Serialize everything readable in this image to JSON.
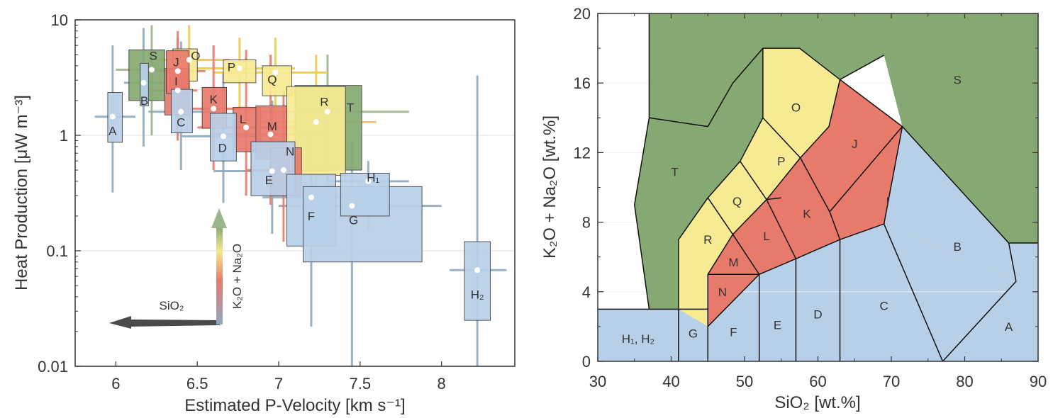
{
  "colors": {
    "mafic_blue": "#b8cfe8",
    "intermediate_red": "#e87a6c",
    "felsic_yellow": "#f6ea92",
    "alkaline_green": "#86a872",
    "errorbar_blue": "#8fa9bf",
    "errorbar_red": "#e87a6c",
    "errorbar_yellow": "#f0c84a",
    "errorbar_green": "#9cb48a"
  },
  "chart_data": [
    {
      "type": "scatter",
      "xlabel": "Estimated P-Velocity [km s⁻¹]",
      "ylabel": "Heat Production [μW m⁻³]",
      "xlim": [
        5.75,
        8.45
      ],
      "ylim": [
        0.01,
        10
      ],
      "yscale": "log",
      "x_ticks": [
        "6",
        "6.5",
        "7",
        "7.5",
        "8"
      ],
      "y_ticks": [
        "0.01",
        "0.1",
        "1",
        "10"
      ],
      "arrow_x_label": "SiO₂",
      "arrow_y_label": "K₂O + Na₂O",
      "points": [
        {
          "label": "A",
          "x": 5.98,
          "y": 1.45,
          "vmin": 5.95,
          "vmax": 6.04,
          "hmin": 0.87,
          "hmax": 2.35,
          "xerr": [
            5.87,
            6.12
          ],
          "yerr": [
            0.32,
            6.0
          ],
          "group": "blue"
        },
        {
          "label": "B",
          "x": 6.17,
          "y": 2.85,
          "vmin": 6.15,
          "vmax": 6.2,
          "hmin": 1.8,
          "hmax": 4.2,
          "xerr": [
            6.05,
            6.3
          ],
          "yerr": [
            0.8,
            8.5
          ],
          "group": "blue"
        },
        {
          "label": "C",
          "x": 6.4,
          "y": 1.6,
          "vmin": 6.34,
          "vmax": 6.47,
          "hmin": 1.05,
          "hmax": 2.5,
          "xerr": [
            6.2,
            6.6
          ],
          "yerr": [
            0.5,
            6.5
          ],
          "group": "blue"
        },
        {
          "label": "D",
          "x": 6.66,
          "y": 0.98,
          "vmin": 6.58,
          "vmax": 6.74,
          "hmin": 0.6,
          "hmax": 1.55,
          "xerr": [
            6.4,
            6.9
          ],
          "yerr": [
            0.26,
            3.5
          ],
          "group": "blue"
        },
        {
          "label": "E",
          "x": 6.96,
          "y": 0.49,
          "vmin": 6.83,
          "vmax": 7.1,
          "hmin": 0.3,
          "hmax": 0.88,
          "xerr": [
            6.6,
            7.3
          ],
          "yerr": [
            0.14,
            2.0
          ],
          "group": "blue"
        },
        {
          "label": "F",
          "x": 7.2,
          "y": 0.29,
          "vmin": 7.05,
          "vmax": 7.35,
          "hmin": 0.11,
          "hmax": 0.46,
          "xerr": [
            6.9,
            7.5
          ],
          "yerr": [
            0.022,
            1.0
          ],
          "group": "blue"
        },
        {
          "label": "G",
          "x": 7.45,
          "y": 0.245,
          "vmin": 7.15,
          "vmax": 7.88,
          "hmin": 0.08,
          "hmax": 0.36,
          "xerr": [
            7.0,
            8.0
          ],
          "yerr": [
            0.01,
            0.9
          ],
          "group": "blue"
        },
        {
          "label": "H₁",
          "x": 7.55,
          "y": 0.4,
          "vmin": 7.38,
          "vmax": 7.68,
          "hmin": 0.2,
          "hmax": 0.47,
          "xerr": [
            7.3,
            7.8
          ],
          "yerr": [
            0.15,
            0.6
          ],
          "group": "blue"
        },
        {
          "label": "H₂",
          "x": 8.22,
          "y": 0.068,
          "vmin": 8.14,
          "vmax": 8.3,
          "hmin": 0.025,
          "hmax": 0.12,
          "xerr": [
            8.05,
            8.4
          ],
          "yerr": [
            0.01,
            3.3
          ],
          "group": "blue"
        },
        {
          "label": "I",
          "x": 6.38,
          "y": 2.45,
          "vmin": 6.3,
          "vmax": 6.45,
          "hmin": 1.5,
          "hmax": 3.8,
          "xerr": [
            6.2,
            6.5
          ],
          "yerr": [
            0.9,
            7.0
          ],
          "group": "red"
        },
        {
          "label": "J",
          "x": 6.38,
          "y": 3.6,
          "vmin": 6.31,
          "vmax": 6.45,
          "hmin": 2.3,
          "hmax": 5.4,
          "xerr": [
            6.25,
            6.55
          ],
          "yerr": [
            1.0,
            8.0
          ],
          "group": "red"
        },
        {
          "label": "K",
          "x": 6.6,
          "y": 1.7,
          "vmin": 6.53,
          "vmax": 6.68,
          "hmin": 1.15,
          "hmax": 2.6,
          "xerr": [
            6.4,
            6.85
          ],
          "yerr": [
            0.5,
            6.0
          ],
          "group": "red"
        },
        {
          "label": "L",
          "x": 6.8,
          "y": 1.17,
          "vmin": 6.72,
          "vmax": 6.89,
          "hmin": 0.72,
          "hmax": 1.75,
          "xerr": [
            6.5,
            7.1
          ],
          "yerr": [
            0.3,
            5.5
          ],
          "group": "red"
        },
        {
          "label": "M",
          "x": 6.95,
          "y": 1.02,
          "vmin": 6.86,
          "vmax": 7.05,
          "hmin": 0.62,
          "hmax": 1.8,
          "xerr": [
            6.6,
            7.3
          ],
          "yerr": [
            0.25,
            5.0
          ],
          "group": "red"
        },
        {
          "label": "N",
          "x": 7.03,
          "y": 0.5,
          "vmin": 6.95,
          "vmax": 7.14,
          "hmin": 0.3,
          "hmax": 0.78,
          "xerr": [
            6.8,
            7.3
          ],
          "yerr": [
            0.12,
            2.5
          ],
          "group": "red"
        },
        {
          "label": "O",
          "x": 6.45,
          "y": 4.5,
          "vmin": 6.35,
          "vmax": 6.5,
          "hmin": 2.95,
          "hmax": 5.6,
          "xerr": [
            6.25,
            6.7
          ],
          "yerr": [
            1.3,
            9.0
          ],
          "group": "yellow"
        },
        {
          "label": "P",
          "x": 6.76,
          "y": 3.8,
          "vmin": 6.66,
          "vmax": 6.86,
          "hmin": 2.85,
          "hmax": 4.5,
          "xerr": [
            6.5,
            7.1
          ],
          "yerr": [
            1.5,
            7.0
          ],
          "group": "yellow"
        },
        {
          "label": "Q",
          "x": 6.98,
          "y": 3.5,
          "vmin": 6.9,
          "vmax": 7.08,
          "hmin": 2.2,
          "hmax": 4.0,
          "xerr": [
            6.6,
            7.3
          ],
          "yerr": [
            1.0,
            7.0
          ],
          "group": "yellow"
        },
        {
          "label": "R",
          "x": 7.23,
          "y": 1.3,
          "vmin": 7.05,
          "vmax": 7.41,
          "hmin": 0.45,
          "hmax": 2.65,
          "xerr": [
            6.9,
            7.6
          ],
          "yerr": [
            0.2,
            5.0
          ],
          "group": "yellow"
        },
        {
          "label": "S",
          "x": 6.22,
          "y": 3.7,
          "vmin": 6.08,
          "vmax": 6.3,
          "hmin": 2.0,
          "hmax": 5.5,
          "xerr": [
            6.0,
            6.45
          ],
          "yerr": [
            1.0,
            9.0
          ],
          "group": "green"
        },
        {
          "label": "T",
          "x": 7.3,
          "y": 1.6,
          "vmin": 7.1,
          "vmax": 7.51,
          "hmin": 0.5,
          "hmax": 2.7,
          "xerr": [
            6.9,
            7.8
          ],
          "yerr": [
            0.3,
            5.0
          ],
          "group": "green"
        }
      ]
    },
    {
      "type": "area",
      "xlabel": "SiO₂ [wt.%]",
      "ylabel": "K₂O + Na₂O [wt.%]",
      "xlim": [
        30,
        90
      ],
      "ylim": [
        0,
        20
      ],
      "x_ticks": [
        "30",
        "40",
        "50",
        "60",
        "70",
        "80",
        "90"
      ],
      "y_ticks": [
        "0",
        "4",
        "8",
        "12",
        "16",
        "20"
      ],
      "fields": [
        {
          "label": "S",
          "group": "green",
          "label_at": [
            79,
            16.2
          ],
          "vertices": [
            [
              37,
              20
            ],
            [
              90,
              20
            ],
            [
              90,
              6.8
            ],
            [
              86,
              6.8
            ],
            [
              71.5,
              13.5
            ],
            [
              69,
              17.6
            ],
            [
              63,
              16.2
            ],
            [
              57.5,
              18
            ],
            [
              52.5,
              18
            ],
            [
              48.4,
              16
            ],
            [
              45,
              13.5
            ],
            [
              37,
              14
            ]
          ]
        },
        {
          "label": "T",
          "group": "green",
          "label_at": [
            40.5,
            10.9
          ],
          "vertices": [
            [
              37,
              14
            ],
            [
              45,
              13.5
            ],
            [
              48.4,
              16
            ],
            [
              52.5,
              18
            ],
            [
              52.5,
              14
            ],
            [
              49.4,
              11.5
            ],
            [
              45,
              9.4
            ],
            [
              41,
              7
            ],
            [
              41,
              3
            ],
            [
              37,
              3
            ],
            [
              35,
              9
            ]
          ]
        },
        {
          "label": "O",
          "group": "yellow",
          "label_at": [
            57,
            14.6
          ],
          "vertices": [
            [
              52.5,
              18
            ],
            [
              57.5,
              18
            ],
            [
              63,
              16.2
            ],
            [
              61.5,
              13.5
            ],
            [
              57.6,
              11.7
            ],
            [
              52.5,
              14
            ]
          ]
        },
        {
          "label": "P",
          "group": "yellow",
          "label_at": [
            55,
            11.5
          ],
          "vertices": [
            [
              52.5,
              14
            ],
            [
              57.6,
              11.7
            ],
            [
              53,
              9.3
            ],
            [
              49.4,
              11.5
            ]
          ]
        },
        {
          "label": "Q",
          "group": "yellow",
          "label_at": [
            49,
            9.2
          ],
          "vertices": [
            [
              49.4,
              11.5
            ],
            [
              53,
              9.3
            ],
            [
              48.4,
              7.3
            ],
            [
              45,
              9.4
            ]
          ]
        },
        {
          "label": "R",
          "group": "yellow",
          "label_at": [
            45,
            7
          ],
          "vertices": [
            [
              45,
              9.4
            ],
            [
              48.4,
              7.3
            ],
            [
              45,
              5
            ],
            [
              45,
              2
            ],
            [
              41,
              3
            ],
            [
              41,
              7
            ]
          ]
        },
        {
          "label": "J",
          "group": "red",
          "label_at": [
            65,
            12.5
          ],
          "vertices": [
            [
              63,
              16.2
            ],
            [
              71.5,
              13.5
            ],
            [
              61.6,
              8.6
            ],
            [
              57.6,
              11.7
            ],
            [
              61.5,
              13.5
            ]
          ]
        },
        {
          "label": "K",
          "group": "red",
          "label_at": [
            58.5,
            8.5
          ],
          "vertices": [
            [
              57.6,
              11.7
            ],
            [
              61.6,
              8.6
            ],
            [
              63,
              7
            ],
            [
              57,
              5.9
            ],
            [
              53,
              9.3
            ]
          ]
        },
        {
          "label": "I",
          "group": "red",
          "label_at": [
            69.5,
            9.2
          ],
          "vertices": [
            [
              71.5,
              13.5
            ],
            [
              69,
              7.9
            ],
            [
              63,
              7
            ],
            [
              61.6,
              8.6
            ]
          ]
        },
        {
          "label": "L",
          "group": "red",
          "label_at": [
            53,
            7.2
          ],
          "vertices": [
            [
              53,
              9.3
            ],
            [
              57,
              5.9
            ],
            [
              52,
              5
            ],
            [
              48.4,
              7.3
            ]
          ]
        },
        {
          "label": "M",
          "group": "red",
          "label_at": [
            48.5,
            5.7
          ],
          "vertices": [
            [
              48.4,
              7.3
            ],
            [
              52,
              5
            ],
            [
              45,
              5
            ]
          ]
        },
        {
          "label": "N",
          "group": "red",
          "label_at": [
            47,
            4
          ],
          "vertices": [
            [
              45,
              5
            ],
            [
              52,
              5
            ],
            [
              45,
              2
            ]
          ]
        },
        {
          "label": "B",
          "group": "blue",
          "label_at": [
            79,
            6.6
          ],
          "vertices": [
            [
              71.5,
              13.5
            ],
            [
              86,
              6.8
            ],
            [
              90,
              6.8
            ],
            [
              90,
              0
            ],
            [
              77,
              0
            ],
            [
              87,
              4.6
            ],
            [
              69,
              7.9
            ]
          ]
        }
      ],
      "field_labels_extra": [
        {
          "label": "C",
          "label_at": [
            69,
            3.2
          ]
        },
        {
          "label": "D",
          "label_at": [
            60,
            2.7
          ]
        },
        {
          "label": "E",
          "label_at": [
            54.5,
            2.1
          ]
        },
        {
          "label": "F",
          "label_at": [
            48.5,
            1.7
          ]
        },
        {
          "label": "G",
          "label_at": [
            43,
            1.6
          ]
        },
        {
          "label": "H₁, H₂",
          "label_at": [
            35.5,
            1.3
          ]
        },
        {
          "label": "A",
          "label_at": [
            86,
            2
          ]
        }
      ],
      "boundaries_note": "polyline vertices reproducing the field boundaries"
    }
  ]
}
